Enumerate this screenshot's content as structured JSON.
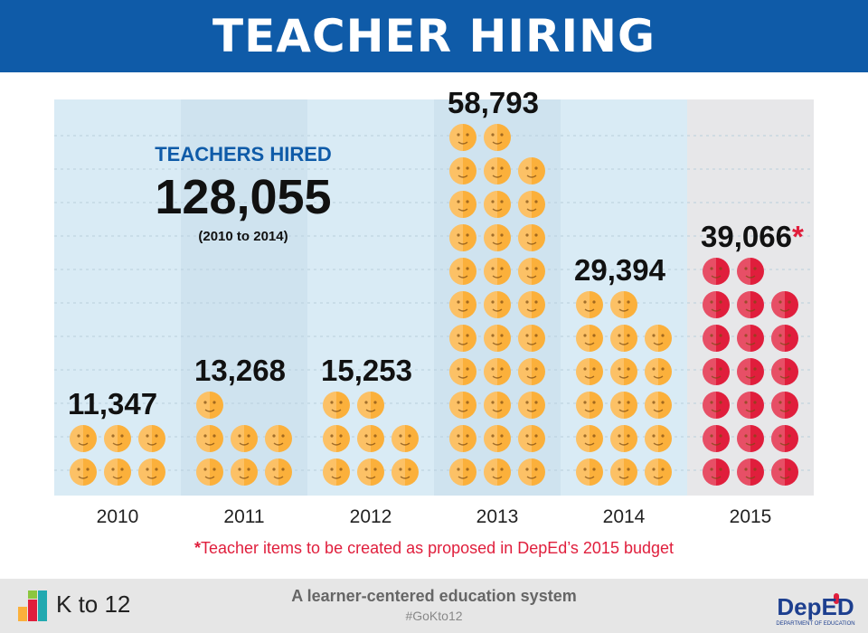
{
  "header": {
    "title": "TEACHER HIRING"
  },
  "summary": {
    "label": "TEACHERS HIRED",
    "total": "128,055",
    "period": "(2010 to 2014)"
  },
  "chart_data": {
    "type": "bar",
    "title": "TEACHER HIRING",
    "categories": [
      "2010",
      "2011",
      "2012",
      "2013",
      "2014",
      "2015"
    ],
    "values": [
      11347,
      13268,
      15253,
      58793,
      29394,
      39066
    ],
    "value_labels": [
      "11,347",
      "13,268",
      "15,253",
      "58,793",
      "29,394",
      "39,066"
    ],
    "proposed_marker": "*",
    "icon_counts": [
      6,
      7,
      8,
      32,
      17,
      20
    ],
    "colors": {
      "hired": "#fbb03b",
      "proposed": "#e01e3c",
      "column_bg_a": "#d9ebf5",
      "column_bg_b": "#cfe3ef",
      "column_bg_proposed": "#e7e7e9"
    },
    "xlabel": "",
    "ylabel": "",
    "grid": true
  },
  "footnote": {
    "marker": "*",
    "text": "Teacher items to be created as proposed in DepEd’s 2015 budget"
  },
  "footer": {
    "logo_text": "K to 12",
    "tagline": "A learner-centered education system",
    "hashtag": "#GoKto12",
    "org_logo_text": "DepED",
    "org_logo_subtext": "DEPARTMENT OF EDUCATION"
  }
}
